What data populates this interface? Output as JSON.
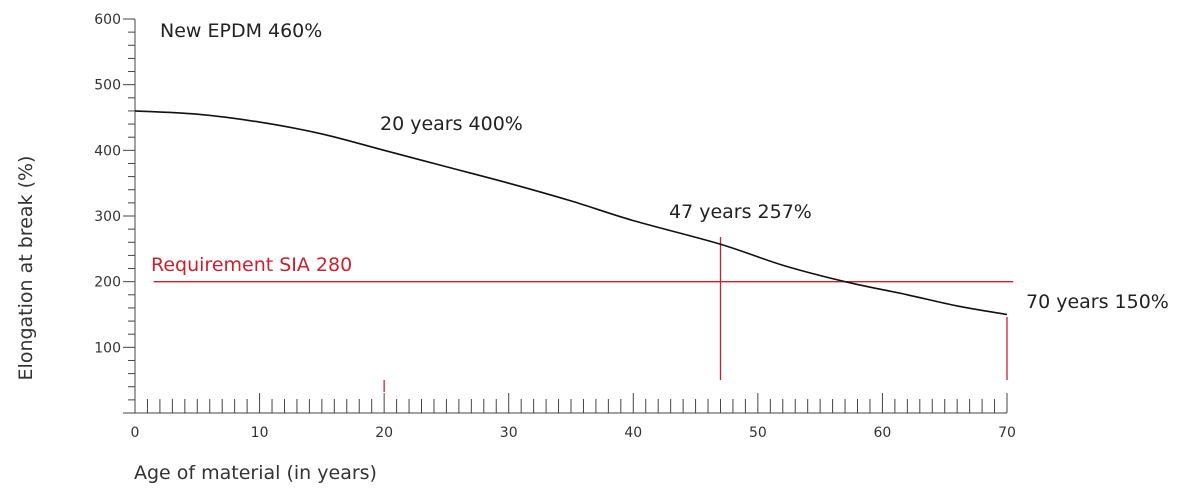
{
  "chart_data": {
    "type": "line",
    "title": "",
    "xlabel": "Age of material (in years)",
    "ylabel": "Elongation at break (%)",
    "xlim": [
      0,
      70
    ],
    "ylim": [
      0,
      600
    ],
    "x_ticks": [
      0,
      10,
      20,
      30,
      40,
      50,
      60,
      70
    ],
    "y_ticks": [
      100,
      200,
      300,
      400,
      500,
      600
    ],
    "series": [
      {
        "x": [
          0,
          5,
          10,
          15,
          20,
          25,
          30,
          35,
          40,
          47,
          52,
          57,
          62,
          66,
          70
        ],
        "y": [
          460,
          455,
          443,
          425,
          400,
          375,
          350,
          323,
          293,
          257,
          225,
          200,
          180,
          163,
          150
        ]
      }
    ],
    "requirement": {
      "label": "Requirement SIA 280",
      "value": 200,
      "x_start": 1.5,
      "x_end": 70.5
    },
    "markers": [
      {
        "x": 20,
        "y": 400
      },
      {
        "x": 47,
        "y": 257
      },
      {
        "x": 70,
        "y": 150
      }
    ],
    "annotations": [
      {
        "id": "new",
        "text": "New EPDM 460%"
      },
      {
        "id": "y20",
        "text": "20 years 400%"
      },
      {
        "id": "y47",
        "text": "47 years 257%"
      },
      {
        "id": "y70",
        "text": "70 years 150%"
      }
    ],
    "colors": {
      "curve": "#111111",
      "requirement": "#cc1f2f",
      "axis": "#444444"
    },
    "grid": false,
    "legend": "none"
  }
}
